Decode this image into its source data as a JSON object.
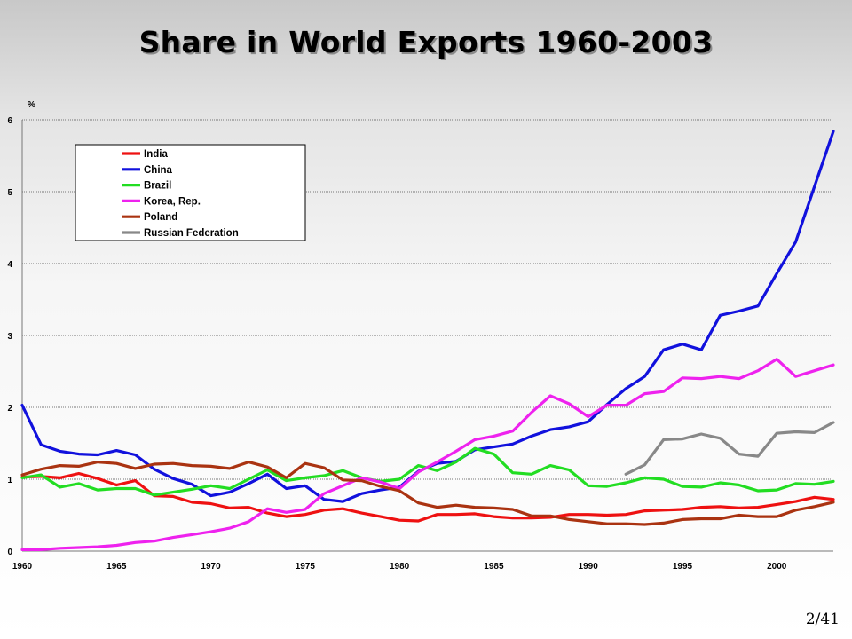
{
  "slide": {
    "title": "Share in World Exports 1960-2003",
    "page_number": "2/41"
  },
  "chart_data": {
    "type": "line",
    "title": "Share in World Exports 1960-2003",
    "ylabel": "%",
    "xlabel": "",
    "xlim": [
      1960,
      2003
    ],
    "ylim": [
      0,
      6
    ],
    "x_ticks": [
      1960,
      1965,
      1970,
      1975,
      1980,
      1985,
      1990,
      1995,
      2000
    ],
    "y_ticks": [
      0,
      1,
      2,
      3,
      4,
      5,
      6
    ],
    "grid": "horizontal",
    "legend_position": "top-left",
    "x": [
      1960,
      1961,
      1962,
      1963,
      1964,
      1965,
      1966,
      1967,
      1968,
      1969,
      1970,
      1971,
      1972,
      1973,
      1974,
      1975,
      1976,
      1977,
      1978,
      1979,
      1980,
      1981,
      1982,
      1983,
      1984,
      1985,
      1986,
      1987,
      1988,
      1989,
      1990,
      1991,
      1992,
      1993,
      1994,
      1995,
      1996,
      1997,
      1998,
      1999,
      2000,
      2001,
      2002,
      2003
    ],
    "series": [
      {
        "name": "India",
        "color": "#ee1111",
        "values": [
          1.03,
          1.04,
          1.02,
          1.08,
          1.01,
          0.92,
          0.98,
          0.77,
          0.76,
          0.68,
          0.66,
          0.6,
          0.61,
          0.53,
          0.48,
          0.51,
          0.57,
          0.59,
          0.53,
          0.48,
          0.43,
          0.42,
          0.51,
          0.51,
          0.52,
          0.48,
          0.46,
          0.46,
          0.47,
          0.51,
          0.51,
          0.5,
          0.51,
          0.56,
          0.57,
          0.58,
          0.61,
          0.62,
          0.6,
          0.61,
          0.65,
          0.69,
          0.75,
          0.72
        ]
      },
      {
        "name": "China",
        "color": "#1111dd",
        "values": [
          2.03,
          1.48,
          1.39,
          1.35,
          1.34,
          1.4,
          1.34,
          1.14,
          1.01,
          0.93,
          0.77,
          0.82,
          0.94,
          1.07,
          0.87,
          0.91,
          0.72,
          0.69,
          0.8,
          0.85,
          0.89,
          1.11,
          1.22,
          1.25,
          1.41,
          1.45,
          1.49,
          1.6,
          1.69,
          1.73,
          1.8,
          2.04,
          2.26,
          2.43,
          2.8,
          2.88,
          2.8,
          3.28,
          3.34,
          3.41,
          3.86,
          4.3,
          5.07,
          5.84
        ]
      },
      {
        "name": "Brazil",
        "color": "#22dd22",
        "values": [
          1.02,
          1.06,
          0.89,
          0.94,
          0.85,
          0.87,
          0.87,
          0.78,
          0.82,
          0.86,
          0.91,
          0.87,
          1.0,
          1.13,
          0.98,
          1.02,
          1.05,
          1.12,
          1.02,
          0.97,
          1.0,
          1.19,
          1.12,
          1.24,
          1.43,
          1.35,
          1.09,
          1.07,
          1.19,
          1.13,
          0.91,
          0.9,
          0.95,
          1.02,
          1.0,
          0.9,
          0.89,
          0.95,
          0.92,
          0.84,
          0.85,
          0.94,
          0.93,
          0.97
        ]
      },
      {
        "name": "Korea, Rep.",
        "color": "#ee22ee",
        "values": [
          0.02,
          0.02,
          0.04,
          0.05,
          0.06,
          0.08,
          0.12,
          0.14,
          0.19,
          0.23,
          0.27,
          0.32,
          0.41,
          0.59,
          0.54,
          0.58,
          0.8,
          0.91,
          1.02,
          0.96,
          0.87,
          1.1,
          1.24,
          1.39,
          1.55,
          1.6,
          1.67,
          1.93,
          2.16,
          2.05,
          1.87,
          2.03,
          2.03,
          2.19,
          2.22,
          2.41,
          2.4,
          2.43,
          2.4,
          2.51,
          2.67,
          2.43,
          2.51,
          2.59
        ]
      },
      {
        "name": "Poland",
        "color": "#aa3311",
        "values": [
          1.06,
          1.14,
          1.19,
          1.18,
          1.24,
          1.22,
          1.15,
          1.21,
          1.22,
          1.19,
          1.18,
          1.15,
          1.24,
          1.17,
          1.02,
          1.22,
          1.16,
          0.99,
          0.98,
          0.9,
          0.84,
          0.67,
          0.61,
          0.64,
          0.61,
          0.6,
          0.58,
          0.49,
          0.49,
          0.44,
          0.41,
          0.38,
          0.38,
          0.37,
          0.39,
          0.44,
          0.45,
          0.45,
          0.5,
          0.48,
          0.48,
          0.57,
          0.62,
          0.68
        ]
      },
      {
        "name": "Russian Federation",
        "color": "#888888",
        "values": [
          null,
          null,
          null,
          null,
          null,
          null,
          null,
          null,
          null,
          null,
          null,
          null,
          null,
          null,
          null,
          null,
          null,
          null,
          null,
          null,
          null,
          null,
          null,
          null,
          null,
          null,
          null,
          null,
          null,
          null,
          null,
          null,
          1.07,
          1.2,
          1.55,
          1.56,
          1.63,
          1.57,
          1.35,
          1.32,
          1.64,
          1.66,
          1.65,
          1.79
        ]
      }
    ]
  }
}
